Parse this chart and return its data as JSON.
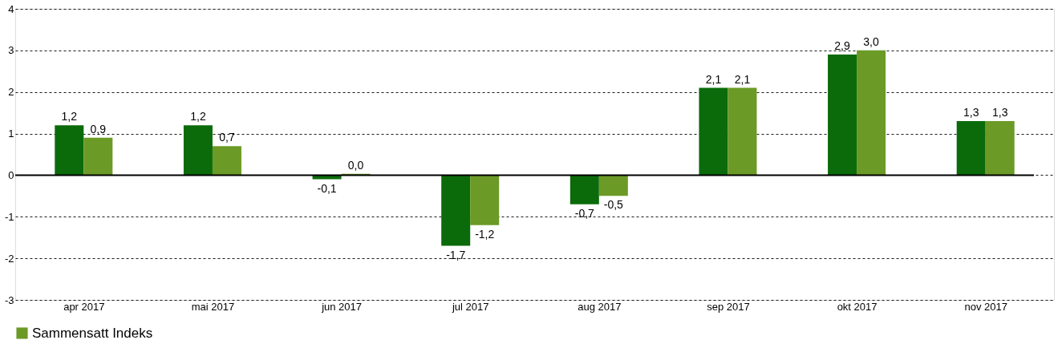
{
  "chart_data": {
    "type": "bar",
    "categories": [
      "apr 2017",
      "mai 2017",
      "jun 2017",
      "jul 2017",
      "aug 2017",
      "sep 2017",
      "okt 2017",
      "nov 2017"
    ],
    "series": [
      {
        "color": "#0b6b0b",
        "values": [
          1.2,
          1.2,
          -0.1,
          -1.7,
          -0.7,
          2.1,
          2.9,
          1.3
        ],
        "value_labels": [
          "1,2",
          "1,2",
          "-0,1",
          "-1,7",
          "-0,7",
          "2,1",
          "2,9",
          "1,3"
        ]
      },
      {
        "name": "Sammensatt Indeks",
        "color": "#6b9a26",
        "values": [
          0.9,
          0.7,
          0.03,
          -1.2,
          -0.5,
          2.1,
          3.0,
          1.3
        ],
        "value_labels": [
          "0,9",
          "0,7",
          "0,0",
          "-1,2",
          "-0,5",
          "2,1",
          "3,0",
          "1,3"
        ]
      }
    ],
    "ylim": [
      -3,
      4
    ],
    "yticks": [
      -3,
      -2,
      -1,
      0,
      1,
      2,
      3,
      4
    ],
    "grid": "y",
    "legend": "bottom left",
    "ref_lines": [
      {
        "axis": "y",
        "value": 0,
        "color": "#000000"
      }
    ]
  }
}
